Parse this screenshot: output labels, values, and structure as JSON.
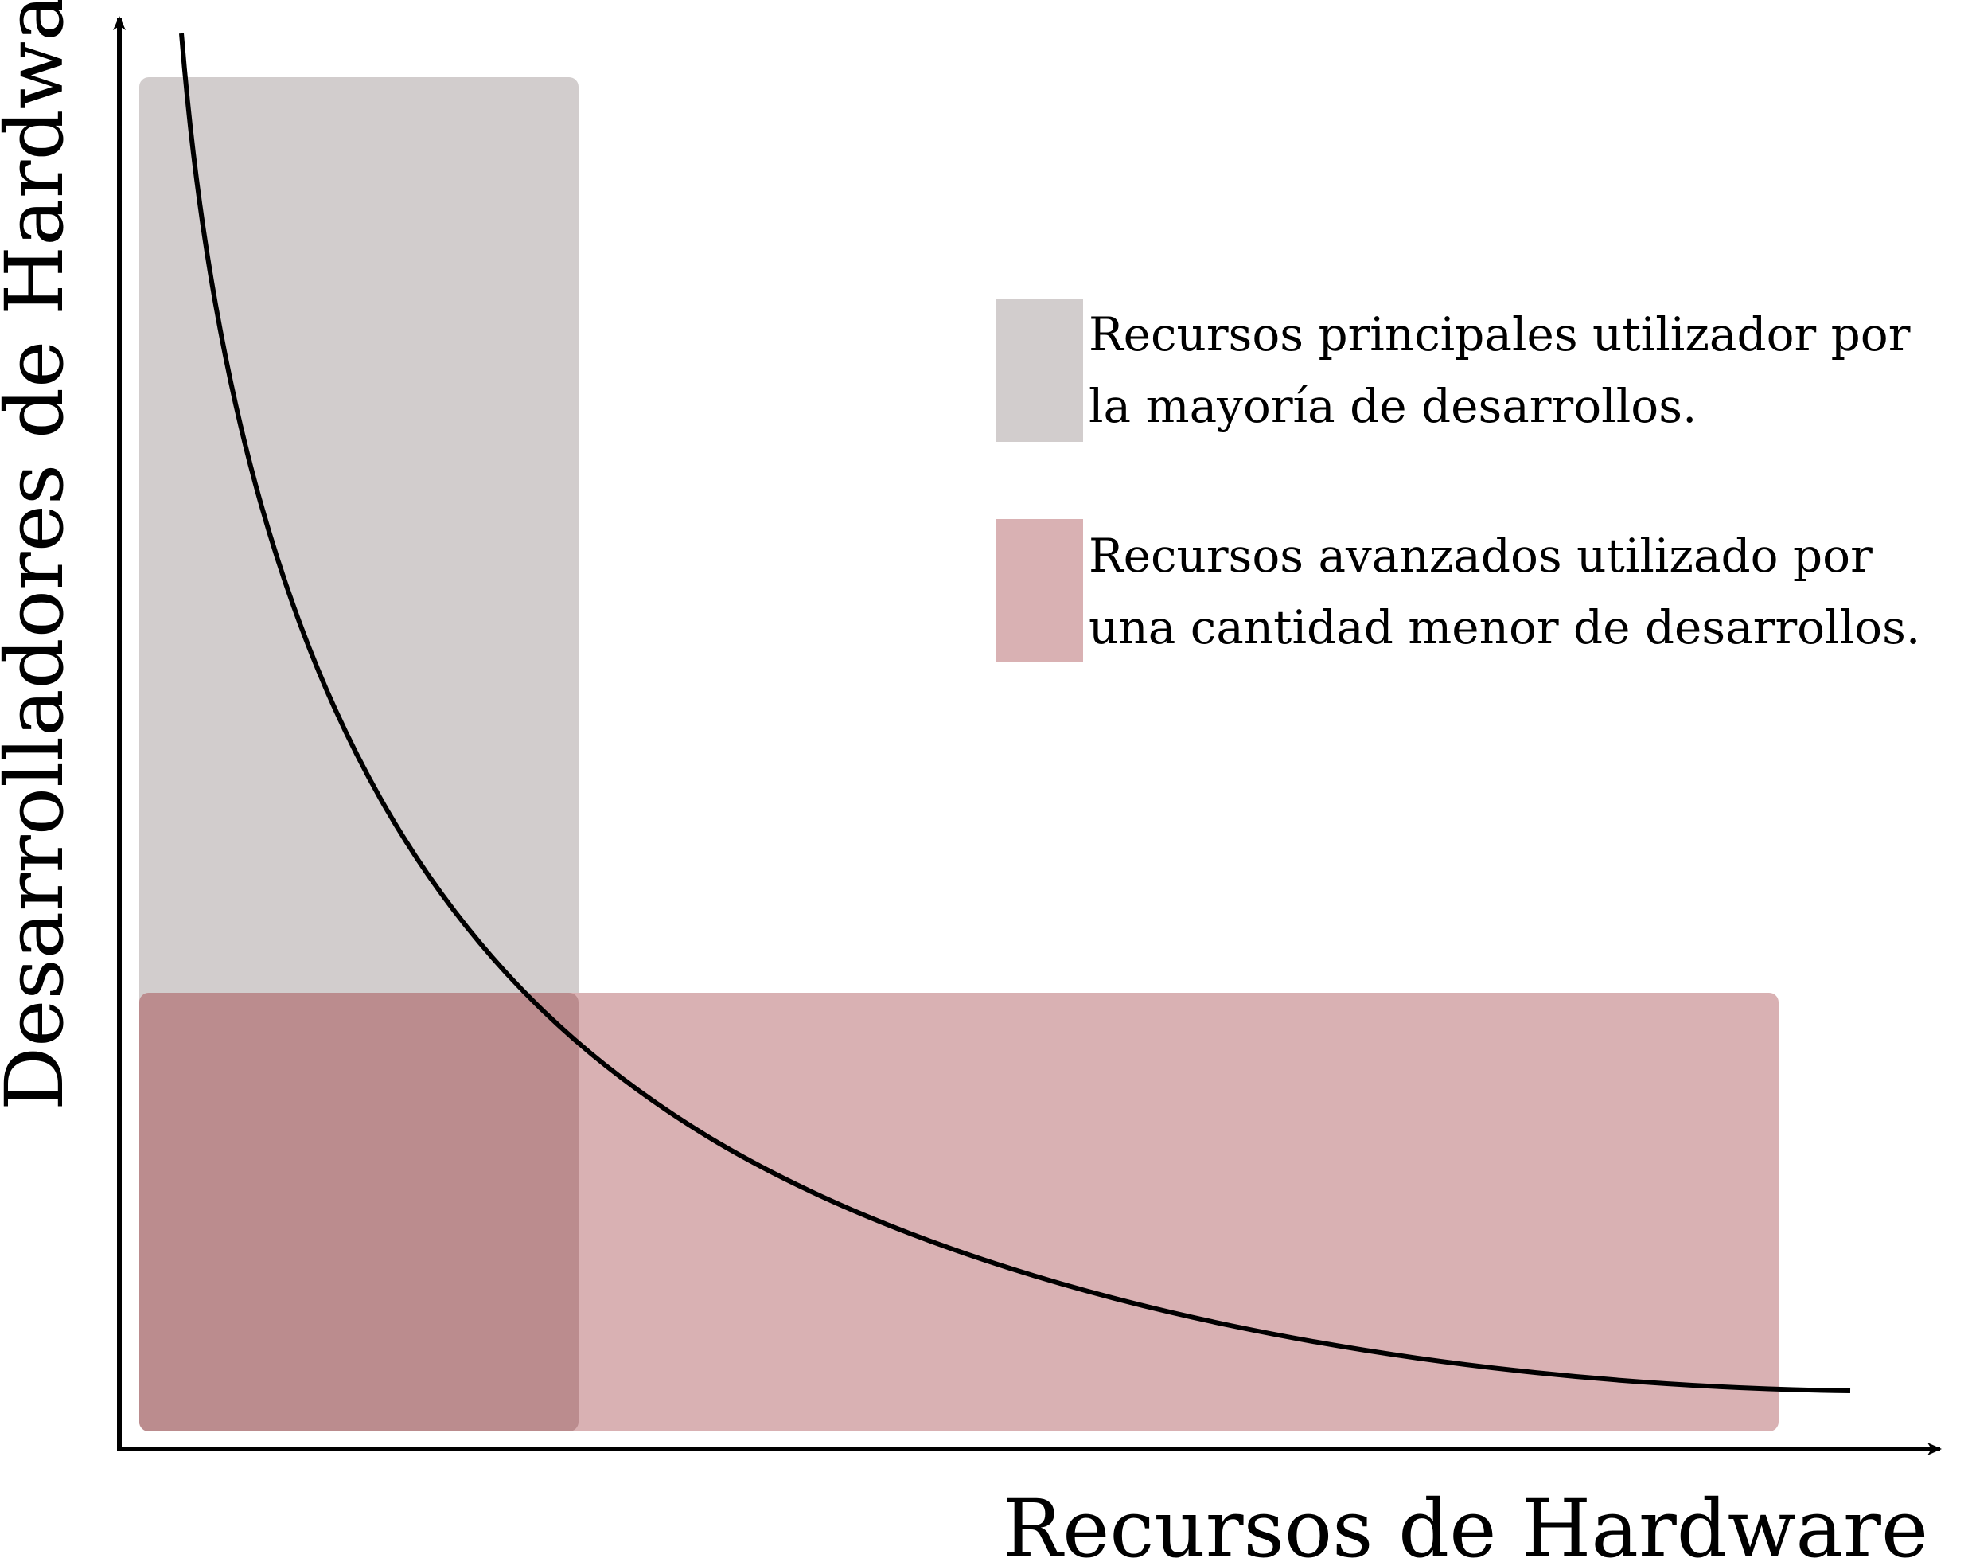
{
  "axes": {
    "x_label": "Recursos de Hardware",
    "y_label": "Desarrolladores de Hardware"
  },
  "legend": [
    {
      "key": "main",
      "color": "#d2cdcd",
      "line1": "Recursos principales utilizador por",
      "line2": "la mayoría de desarrollos."
    },
    {
      "key": "advanced",
      "color": "#d9b1b3",
      "line1": "Recursos avanzados utilizado por",
      "line2": "una cantidad menor de desarrollos."
    }
  ],
  "colors": {
    "overlap": "#bb8c8e",
    "axis": "#000000",
    "curve": "#000000"
  }
}
